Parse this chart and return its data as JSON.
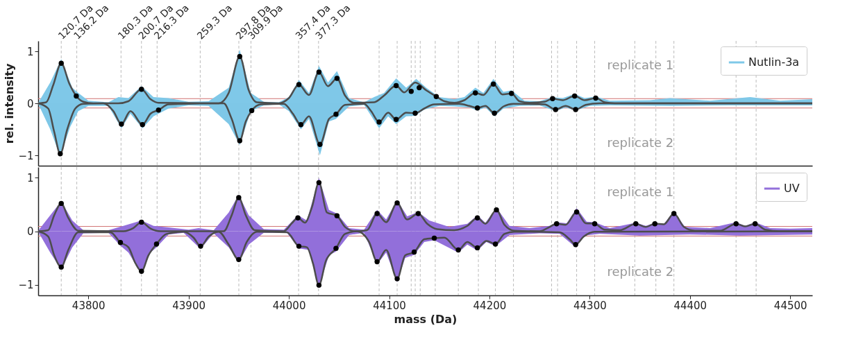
{
  "chart_data": [
    {
      "type": "area",
      "ylabel": "rel. intensity",
      "xlim": [
        43750,
        44522
      ],
      "ylim": [
        -1.2,
        1.2
      ],
      "xticks": [
        43800,
        43900,
        44000,
        44100,
        44200,
        44300,
        44400,
        44500
      ],
      "yticks": [
        -1,
        0,
        1
      ],
      "tick_labels": "y",
      "legend": "top right",
      "annotations": [
        "replicate 1",
        "replicate 2"
      ],
      "ref_lines": [
        {
          "axis": "x",
          "value": 43773.0,
          "label": "120.7 Da",
          "color": "#aaaaaa",
          "line_style": "dashed"
        },
        {
          "axis": "x",
          "value": 43788.5,
          "label": "136.2 Da",
          "color": "#aaaaaa",
          "line_style": "dashed"
        },
        {
          "axis": "x",
          "value": 43832.6,
          "label": "180.3 Da",
          "color": "#aaaaaa",
          "line_style": "dashed"
        },
        {
          "axis": "x",
          "value": 43853.0,
          "label": "200.7 Da",
          "color": "#aaaaaa",
          "line_style": "dashed"
        },
        {
          "axis": "x",
          "value": 43868.6,
          "label": "216.3 Da",
          "color": "#aaaaaa",
          "line_style": "dashed"
        },
        {
          "axis": "x",
          "value": 43911.6,
          "label": "259.3 Da",
          "color": "#aaaaaa",
          "line_style": "dashed"
        },
        {
          "axis": "x",
          "value": 43950.1,
          "label": "297.8 Da",
          "color": "#aaaaaa",
          "line_style": "dashed"
        },
        {
          "axis": "x",
          "value": 43962.2,
          "label": "309.9 Da",
          "color": "#aaaaaa",
          "line_style": "dashed"
        },
        {
          "axis": "x",
          "value": 44009.7,
          "label": "357.4 Da",
          "color": "#aaaaaa",
          "line_style": "dashed"
        },
        {
          "axis": "x",
          "value": 44029.6,
          "label": "377.3 Da",
          "color": "#aaaaaa",
          "line_style": "dashed"
        },
        {
          "axis": "x",
          "value": 44090,
          "color": "#aaaaaa",
          "line_style": "dashed"
        },
        {
          "axis": "x",
          "value": 44108,
          "color": "#aaaaaa",
          "line_style": "dashed"
        },
        {
          "axis": "x",
          "value": 44122,
          "color": "#aaaaaa",
          "line_style": "dashed"
        },
        {
          "axis": "x",
          "value": 44126,
          "color": "#aaaaaa",
          "line_style": "dashed"
        },
        {
          "axis": "x",
          "value": 44131,
          "color": "#aaaaaa",
          "line_style": "dashed"
        },
        {
          "axis": "x",
          "value": 44146,
          "color": "#aaaaaa",
          "line_style": "dashed"
        },
        {
          "axis": "x",
          "value": 44169,
          "color": "#aaaaaa",
          "line_style": "dashed"
        },
        {
          "axis": "x",
          "value": 44189,
          "color": "#aaaaaa",
          "line_style": "dashed"
        },
        {
          "axis": "x",
          "value": 44206,
          "color": "#aaaaaa",
          "line_style": "dashed"
        },
        {
          "axis": "x",
          "value": 44224,
          "color": "#aaaaaa",
          "line_style": "dashed"
        },
        {
          "axis": "x",
          "value": 44262,
          "color": "#aaaaaa",
          "line_style": "dashed"
        },
        {
          "axis": "x",
          "value": 44268,
          "color": "#aaaaaa",
          "line_style": "dashed"
        },
        {
          "axis": "x",
          "value": 44287,
          "color": "#aaaaaa",
          "line_style": "dashed"
        },
        {
          "axis": "x",
          "value": 44305,
          "color": "#aaaaaa",
          "line_style": "dashed"
        },
        {
          "axis": "x",
          "value": 44345,
          "color": "#aaaaaa",
          "line_style": "dashed"
        },
        {
          "axis": "x",
          "value": 44366,
          "color": "#aaaaaa",
          "line_style": "dashed"
        },
        {
          "axis": "x",
          "value": 44384,
          "color": "#aaaaaa",
          "line_style": "dashed"
        },
        {
          "axis": "x",
          "value": 44446,
          "color": "#aaaaaa",
          "line_style": "dashed"
        },
        {
          "axis": "x",
          "value": 44466,
          "color": "#aaaaaa",
          "line_style": "dashed"
        },
        {
          "axis": "y",
          "value": 0.09,
          "color": "#d07070"
        },
        {
          "axis": "y",
          "value": -0.09,
          "color": "#d07070"
        }
      ],
      "series": [
        {
          "name": "Nutlin-3a",
          "color": "#7fc8e8",
          "x": [
            43750,
            43762,
            43773,
            43784,
            43790,
            43800,
            43820,
            43830,
            43840,
            43853,
            43865,
            43880,
            43900,
            43920,
            43940,
            43951,
            43962,
            43975,
            43990,
            44000,
            44010,
            44020,
            44030,
            44039,
            44048,
            44060,
            44075,
            44085,
            44095,
            44107,
            44117,
            44127,
            44137,
            44150,
            44165,
            44175,
            44186,
            44194,
            44204,
            44214,
            44222,
            44235,
            44250,
            44263,
            44273,
            44285,
            44295,
            44306,
            44320,
            44360,
            44380,
            44420,
            44460,
            44490,
            44522
          ],
          "values": [
            0.01,
            0.4,
            0.85,
            0.3,
            0.2,
            0.05,
            0.02,
            0.12,
            0.1,
            0.33,
            0.12,
            0.1,
            0.03,
            0.04,
            0.3,
            1.03,
            0.2,
            0.03,
            0.02,
            0.12,
            0.45,
            0.2,
            0.72,
            0.4,
            0.62,
            0.1,
            0.02,
            0.12,
            0.2,
            0.48,
            0.3,
            0.47,
            0.3,
            0.12,
            0.08,
            0.12,
            0.3,
            0.2,
            0.47,
            0.22,
            0.25,
            0.05,
            0.04,
            0.12,
            0.1,
            0.18,
            0.1,
            0.13,
            0.05,
            0.06,
            0.1,
            0.05,
            0.12,
            0.05,
            0.08
          ]
        },
        {
          "color": "#7ec7e7",
          "x": [
            43750,
            43762,
            43772,
            43782,
            43790,
            43800,
            43820,
            43833,
            43842,
            43854,
            43865,
            43880,
            43900,
            43920,
            43940,
            43951,
            43962,
            43975,
            43990,
            44000,
            44012,
            44020,
            44031,
            44040,
            44047,
            44060,
            44075,
            44090,
            44099,
            44107,
            44117,
            44126,
            44135,
            44150,
            44165,
            44180,
            44188,
            44196,
            44205,
            44214,
            44230,
            44250,
            44266,
            44276,
            44286,
            44300,
            44320,
            44380,
            44440,
            44522
          ],
          "values": [
            -0.01,
            -0.5,
            -1.02,
            -0.45,
            -0.15,
            -0.05,
            -0.05,
            -0.48,
            -0.2,
            -0.48,
            -0.25,
            -0.1,
            -0.04,
            -0.05,
            -0.4,
            -0.8,
            -0.15,
            -0.04,
            -0.02,
            -0.15,
            -0.5,
            -0.3,
            -1.0,
            -0.35,
            -0.3,
            -0.06,
            -0.03,
            -0.48,
            -0.25,
            -0.4,
            -0.25,
            -0.24,
            -0.12,
            -0.05,
            -0.06,
            -0.08,
            -0.14,
            -0.08,
            -0.25,
            -0.1,
            -0.05,
            -0.04,
            -0.15,
            -0.08,
            -0.14,
            -0.05,
            -0.04,
            -0.05,
            -0.04,
            -0.04
          ]
        },
        {
          "color": "#4d4d4d",
          "type": "line",
          "x": [
            43750,
            43758,
            43765,
            43773,
            43781,
            43788,
            43795,
            43805,
            43830,
            43840,
            43853,
            43862,
            43870,
            43930,
            43940,
            43951,
            43960,
            43968,
            43990,
            44000,
            44010,
            44020,
            44030,
            44039,
            44048,
            44056,
            44065,
            44085,
            44095,
            44107,
            44115,
            44126,
            44137,
            44147,
            44155,
            44165,
            44175,
            44186,
            44194,
            44204,
            44213,
            44222,
            44230,
            44240,
            44255,
            44263,
            44273,
            44285,
            44295,
            44306,
            44315,
            44325,
            44522
          ],
          "values": [
            0,
            0.02,
            0.35,
            0.77,
            0.38,
            0.14,
            0.03,
            0,
            0,
            0.04,
            0.27,
            0.08,
            0.01,
            0,
            0.2,
            0.9,
            0.25,
            0.02,
            0,
            0.1,
            0.36,
            0.16,
            0.6,
            0.33,
            0.48,
            0.15,
            0.01,
            0.02,
            0.15,
            0.34,
            0.21,
            0.4,
            0.25,
            0.13,
            0.04,
            0.01,
            0.06,
            0.2,
            0.16,
            0.37,
            0.17,
            0.19,
            0.04,
            0.01,
            0.03,
            0.09,
            0.06,
            0.14,
            0.06,
            0.1,
            0.02,
            0,
            0
          ]
        },
        {
          "color": "#4c4c4c",
          "type": "line",
          "x": [
            43750,
            43760,
            43766,
            43772,
            43779,
            43787,
            43795,
            43815,
            43825,
            43833,
            43842,
            43854,
            43862,
            43870,
            43880,
            43935,
            43943,
            43951,
            43957,
            43963,
            43972,
            43995,
            44004,
            44012,
            44020,
            44031,
            44040,
            44047,
            44056,
            44075,
            44082,
            44090,
            44099,
            44107,
            44117,
            44126,
            44135,
            44145,
            44170,
            44180,
            44188,
            44196,
            44205,
            44214,
            44224,
            44255,
            44266,
            44276,
            44286,
            44296,
            44310,
            44522
          ],
          "values": [
            0,
            -0.1,
            -0.55,
            -0.97,
            -0.5,
            -0.1,
            -0.01,
            0,
            -0.15,
            -0.4,
            -0.15,
            -0.41,
            -0.2,
            -0.13,
            -0.02,
            0,
            -0.3,
            -0.72,
            -0.35,
            -0.14,
            -0.02,
            -0.01,
            -0.2,
            -0.41,
            -0.25,
            -0.79,
            -0.3,
            -0.21,
            -0.03,
            -0.01,
            -0.15,
            -0.36,
            -0.18,
            -0.31,
            -0.18,
            -0.19,
            -0.1,
            -0.02,
            -0.01,
            -0.05,
            -0.09,
            -0.05,
            -0.19,
            -0.06,
            -0.01,
            -0.02,
            -0.12,
            -0.05,
            -0.12,
            -0.03,
            0,
            0
          ]
        },
        {
          "color": "#000000",
          "type": "scatter",
          "x": [
            43773,
            43788,
            43853,
            43951,
            44010,
            44030,
            44048,
            44107,
            44122,
            44130,
            44147,
            44186,
            44204,
            44222,
            44263,
            44285,
            44306
          ],
          "values": [
            0.77,
            0.14,
            0.27,
            0.9,
            0.36,
            0.6,
            0.48,
            0.34,
            0.23,
            0.3,
            0.13,
            0.2,
            0.37,
            0.19,
            0.09,
            0.14,
            0.1
          ]
        },
        {
          "color": "#000000",
          "type": "scatter",
          "x": [
            43772,
            43833,
            43854,
            43870,
            43951,
            43963,
            44012,
            44031,
            44047,
            44090,
            44107,
            44126,
            44188,
            44205,
            44266,
            44286
          ],
          "values": [
            -0.97,
            -0.4,
            -0.41,
            -0.13,
            -0.72,
            -0.14,
            -0.41,
            -0.79,
            -0.21,
            -0.36,
            -0.31,
            -0.19,
            -0.09,
            -0.19,
            -0.12,
            -0.12
          ]
        }
      ]
    },
    {
      "type": "area",
      "xlabel": "mass (Da)",
      "xlim": [
        43750,
        44522
      ],
      "ylim": [
        -1.2,
        1.2
      ],
      "xticks": [
        43800,
        43900,
        44000,
        44100,
        44200,
        44300,
        44400,
        44500
      ],
      "yticks": [
        -1,
        0,
        1
      ],
      "legend": "top right",
      "annotations": [
        "replicate 1",
        "replicate 2"
      ],
      "ref_lines": [
        {
          "axis": "x",
          "value": 43773.0,
          "color": "#aaaaaa",
          "line_style": "dashed"
        },
        {
          "axis": "x",
          "value": 43788.5,
          "color": "#aaaaaa",
          "line_style": "dashed"
        },
        {
          "axis": "x",
          "value": 43832.6,
          "color": "#aaaaaa",
          "line_style": "dashed"
        },
        {
          "axis": "x",
          "value": 43853.0,
          "color": "#aaaaaa",
          "line_style": "dashed"
        },
        {
          "axis": "x",
          "value": 43868.6,
          "color": "#aaaaaa",
          "line_style": "dashed"
        },
        {
          "axis": "x",
          "value": 43911.6,
          "color": "#aaaaaa",
          "line_style": "dashed"
        },
        {
          "axis": "x",
          "value": 43950.1,
          "color": "#aaaaaa",
          "line_style": "dashed"
        },
        {
          "axis": "x",
          "value": 43962.2,
          "color": "#aaaaaa",
          "line_style": "dashed"
        },
        {
          "axis": "x",
          "value": 44009.7,
          "color": "#aaaaaa",
          "line_style": "dashed"
        },
        {
          "axis": "x",
          "value": 44029.6,
          "color": "#aaaaaa",
          "line_style": "dashed"
        },
        {
          "axis": "x",
          "value": 44090,
          "color": "#aaaaaa",
          "line_style": "dashed"
        },
        {
          "axis": "x",
          "value": 44108,
          "color": "#aaaaaa",
          "line_style": "dashed"
        },
        {
          "axis": "x",
          "value": 44122,
          "color": "#aaaaaa",
          "line_style": "dashed"
        },
        {
          "axis": "x",
          "value": 44126,
          "color": "#aaaaaa",
          "line_style": "dashed"
        },
        {
          "axis": "x",
          "value": 44131,
          "color": "#aaaaaa",
          "line_style": "dashed"
        },
        {
          "axis": "x",
          "value": 44146,
          "color": "#aaaaaa",
          "line_style": "dashed"
        },
        {
          "axis": "x",
          "value": 44169,
          "color": "#aaaaaa",
          "line_style": "dashed"
        },
        {
          "axis": "x",
          "value": 44189,
          "color": "#aaaaaa",
          "line_style": "dashed"
        },
        {
          "axis": "x",
          "value": 44206,
          "color": "#aaaaaa",
          "line_style": "dashed"
        },
        {
          "axis": "x",
          "value": 44224,
          "color": "#aaaaaa",
          "line_style": "dashed"
        },
        {
          "axis": "x",
          "value": 44262,
          "color": "#aaaaaa",
          "line_style": "dashed"
        },
        {
          "axis": "x",
          "value": 44268,
          "color": "#aaaaaa",
          "line_style": "dashed"
        },
        {
          "axis": "x",
          "value": 44287,
          "color": "#aaaaaa",
          "line_style": "dashed"
        },
        {
          "axis": "x",
          "value": 44305,
          "color": "#aaaaaa",
          "line_style": "dashed"
        },
        {
          "axis": "x",
          "value": 44345,
          "color": "#aaaaaa",
          "line_style": "dashed"
        },
        {
          "axis": "x",
          "value": 44366,
          "color": "#aaaaaa",
          "line_style": "dashed"
        },
        {
          "axis": "x",
          "value": 44384,
          "color": "#aaaaaa",
          "line_style": "dashed"
        },
        {
          "axis": "x",
          "value": 44446,
          "color": "#aaaaaa",
          "line_style": "dashed"
        },
        {
          "axis": "x",
          "value": 44466,
          "color": "#aaaaaa",
          "line_style": "dashed"
        },
        {
          "axis": "y",
          "value": 0.09,
          "color": "#d07070"
        },
        {
          "axis": "y",
          "value": -0.09,
          "color": "#d07070"
        }
      ],
      "series": [
        {
          "name": "UV",
          "color": "#9370db",
          "x": [
            43750,
            43762,
            43773,
            43784,
            43795,
            43820,
            43835,
            43853,
            43865,
            43880,
            43900,
            43910,
            43925,
            43940,
            43950,
            43960,
            43975,
            43995,
            44009,
            44018,
            44030,
            44040,
            44048,
            44060,
            44075,
            44088,
            44097,
            44108,
            44118,
            44129,
            44140,
            44160,
            44178,
            44188,
            44196,
            44207,
            44220,
            44240,
            44260,
            44267,
            44277,
            44287,
            44297,
            44305,
            44320,
            44346,
            44356,
            44365,
            44374,
            44384,
            44395,
            44420,
            44446,
            44455,
            44465,
            44480,
            44500,
            44522
          ],
          "values": [
            0.01,
            0.3,
            0.56,
            0.2,
            0.02,
            0.02,
            0.1,
            0.2,
            0.1,
            0.07,
            0.03,
            0.06,
            0.02,
            0.35,
            0.68,
            0.3,
            0.04,
            0.03,
            0.3,
            0.2,
            1.0,
            0.4,
            0.33,
            0.06,
            0.03,
            0.4,
            0.22,
            0.58,
            0.28,
            0.36,
            0.2,
            0.08,
            0.14,
            0.3,
            0.16,
            0.44,
            0.1,
            0.06,
            0.1,
            0.17,
            0.15,
            0.43,
            0.18,
            0.17,
            0.06,
            0.16,
            0.1,
            0.16,
            0.14,
            0.37,
            0.08,
            0.06,
            0.17,
            0.1,
            0.17,
            0.06,
            0.05,
            0.06
          ]
        },
        {
          "color": "#926fda",
          "x": [
            43750,
            43762,
            43773,
            43784,
            43795,
            43820,
            43832,
            43840,
            43853,
            43862,
            43868,
            43880,
            43895,
            43912,
            43925,
            43940,
            43950,
            43960,
            43975,
            43998,
            44010,
            44020,
            44030,
            44040,
            44047,
            44060,
            44075,
            44088,
            44097,
            44108,
            44116,
            44125,
            44135,
            44145,
            44169,
            44178,
            44188,
            44197,
            44206,
            44220,
            44250,
            44270,
            44286,
            44295,
            44310,
            44350,
            44400,
            44450,
            44522
          ],
          "values": [
            -0.01,
            -0.4,
            -0.72,
            -0.3,
            -0.04,
            -0.03,
            -0.27,
            -0.4,
            -0.8,
            -0.4,
            -0.3,
            -0.06,
            -0.03,
            -0.33,
            -0.04,
            -0.3,
            -0.58,
            -0.25,
            -0.03,
            -0.03,
            -0.32,
            -0.35,
            -1.05,
            -0.45,
            -0.38,
            -0.07,
            -0.03,
            -0.62,
            -0.4,
            -0.95,
            -0.5,
            -0.44,
            -0.2,
            -0.17,
            -0.4,
            -0.25,
            -0.36,
            -0.2,
            -0.28,
            -0.07,
            -0.04,
            -0.05,
            -0.3,
            -0.08,
            -0.05,
            -0.08,
            -0.06,
            -0.08,
            -0.06
          ]
        },
        {
          "color": "#4d4d4d",
          "type": "line",
          "x": [
            43750,
            43760,
            43766,
            43773,
            43780,
            43790,
            43835,
            43845,
            43853,
            43862,
            43872,
            43935,
            43943,
            43950,
            43957,
            43966,
            43995,
            44003,
            44009,
            44016,
            44023,
            44030,
            44038,
            44048,
            44056,
            44066,
            44078,
            44088,
            44097,
            44108,
            44118,
            44129,
            44138,
            44148,
            44165,
            44178,
            44188,
            44196,
            44207,
            44215,
            44225,
            44250,
            44260,
            44267,
            44276,
            44287,
            44296,
            44305,
            44315,
            44330,
            44346,
            44356,
            44365,
            44374,
            44384,
            44394,
            44405,
            44430,
            44446,
            44455,
            44465,
            44475,
            44490,
            44522
          ],
          "values": [
            0,
            0.02,
            0.3,
            0.52,
            0.25,
            0.01,
            0,
            0.06,
            0.17,
            0.05,
            0,
            0,
            0.3,
            0.63,
            0.3,
            0.02,
            0,
            0.15,
            0.25,
            0.16,
            0.45,
            0.91,
            0.35,
            0.29,
            0.08,
            0,
            0.02,
            0.33,
            0.17,
            0.53,
            0.22,
            0.33,
            0.14,
            0.04,
            0.02,
            0.1,
            0.25,
            0.14,
            0.4,
            0.12,
            0.01,
            0,
            0.08,
            0.14,
            0.12,
            0.36,
            0.15,
            0.14,
            0.03,
            0.02,
            0.14,
            0.08,
            0.14,
            0.13,
            0.33,
            0.08,
            0.01,
            0.01,
            0.14,
            0.09,
            0.14,
            0.03,
            0,
            0
          ]
        },
        {
          "color": "#4c4c4c",
          "type": "line",
          "x": [
            43750,
            43760,
            43766,
            43773,
            43780,
            43790,
            43822,
            43832,
            43840,
            43847,
            43853,
            43860,
            43868,
            43878,
            43895,
            43905,
            43912,
            43920,
            43930,
            43940,
            43950,
            43958,
            43968,
            43998,
            44010,
            44018,
            44024,
            44030,
            44037,
            44047,
            44056,
            44068,
            44080,
            44088,
            44097,
            44108,
            44116,
            44125,
            44135,
            44145,
            44155,
            44169,
            44178,
            44188,
            44197,
            44206,
            44215,
            44225,
            44270,
            44280,
            44286,
            44294,
            44305,
            44522
          ],
          "values": [
            0,
            -0.1,
            -0.45,
            -0.67,
            -0.35,
            -0.02,
            -0.02,
            -0.21,
            -0.3,
            -0.6,
            -0.75,
            -0.45,
            -0.24,
            -0.05,
            -0.01,
            -0.12,
            -0.28,
            -0.1,
            -0.01,
            -0.25,
            -0.53,
            -0.2,
            -0.01,
            -0.02,
            -0.28,
            -0.3,
            -0.6,
            -1.01,
            -0.55,
            -0.32,
            -0.05,
            0,
            -0.2,
            -0.57,
            -0.35,
            -0.89,
            -0.45,
            -0.39,
            -0.15,
            -0.13,
            -0.12,
            -0.35,
            -0.2,
            -0.31,
            -0.18,
            -0.24,
            -0.05,
            -0.01,
            -0.02,
            -0.15,
            -0.25,
            -0.1,
            -0.01,
            0
          ]
        },
        {
          "color": "#000000",
          "type": "scatter",
          "x": [
            43773,
            43853,
            43950,
            44009,
            44030,
            44048,
            44088,
            44108,
            44129,
            44188,
            44207,
            44267,
            44287,
            44305,
            44346,
            44365,
            44384,
            44446,
            44465
          ],
          "values": [
            0.52,
            0.17,
            0.63,
            0.25,
            0.91,
            0.29,
            0.33,
            0.53,
            0.33,
            0.25,
            0.4,
            0.14,
            0.36,
            0.14,
            0.14,
            0.14,
            0.33,
            0.14,
            0.14
          ]
        },
        {
          "color": "#000000",
          "type": "scatter",
          "x": [
            43773,
            43832,
            43853,
            43868,
            43912,
            43950,
            44010,
            44030,
            44047,
            44088,
            44108,
            44125,
            44145,
            44169,
            44188,
            44206,
            44286
          ],
          "values": [
            -0.67,
            -0.21,
            -0.75,
            -0.24,
            -0.28,
            -0.53,
            -0.28,
            -1.01,
            -0.32,
            -0.57,
            -0.89,
            -0.39,
            -0.13,
            -0.35,
            -0.31,
            -0.24,
            -0.25
          ]
        }
      ]
    }
  ]
}
